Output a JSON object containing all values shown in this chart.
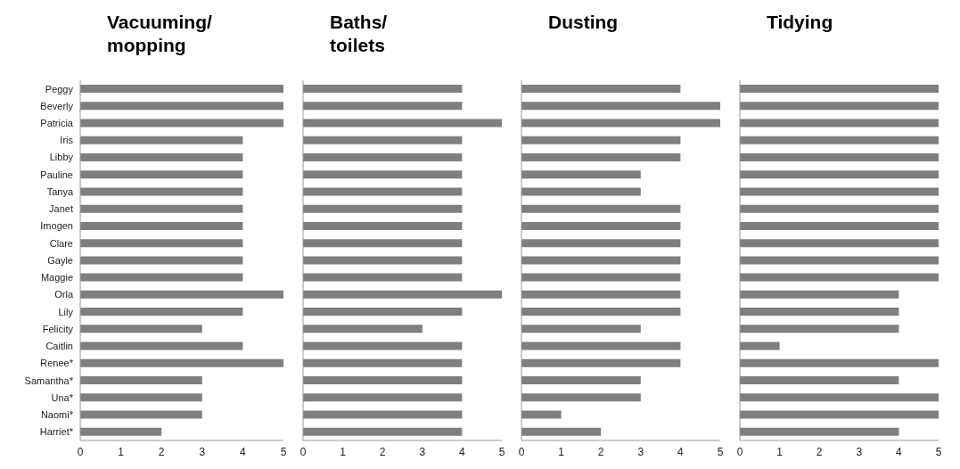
{
  "chart_data": [
    {
      "type": "bar",
      "orientation": "horizontal",
      "title": "Vacuuming/\nmopping",
      "categories": [
        "Peggy",
        "Beverly",
        "Patricia",
        "Iris",
        "Libby",
        "Pauline",
        "Tanya",
        "Janet",
        "Imogen",
        "Clare",
        "Gayle",
        "Maggie",
        "Orla",
        "Lily",
        "Felicity",
        "Caitlin",
        "Renee*",
        "Samantha*",
        "Una*",
        "Naomi*",
        "Harriet*"
      ],
      "values": [
        5,
        5,
        5,
        4,
        4,
        4,
        4,
        4,
        4,
        4,
        4,
        4,
        5,
        4,
        3,
        4,
        5,
        3,
        3,
        3,
        2
      ],
      "color": "#7f7f7f",
      "xlim": [
        0,
        5
      ],
      "xticks": [
        0,
        1,
        2,
        3,
        4,
        5
      ]
    },
    {
      "type": "bar",
      "orientation": "horizontal",
      "title": "Baths/\ntoilets",
      "categories": [
        null,
        null,
        null,
        null,
        null,
        null,
        null,
        null,
        null,
        null,
        null,
        null,
        null,
        null,
        null,
        null,
        null,
        null,
        null,
        null,
        null
      ],
      "values": [
        4,
        4,
        5,
        4,
        4,
        4,
        4,
        4,
        4,
        4,
        4,
        4,
        5,
        4,
        3,
        4,
        4,
        4,
        4,
        4,
        4
      ],
      "color": "#7f7f7f",
      "xlim": [
        0,
        5
      ],
      "xticks": [
        0,
        1,
        2,
        3,
        4,
        5
      ],
      "tick_labels": "x"
    },
    {
      "type": "bar",
      "orientation": "horizontal",
      "title": "Dusting",
      "categories": [
        null,
        null,
        null,
        null,
        null,
        null,
        null,
        null,
        null,
        null,
        null,
        null,
        null,
        null,
        null,
        null,
        null,
        null,
        null,
        null,
        null
      ],
      "values": [
        4,
        5,
        5,
        4,
        4,
        3,
        3,
        4,
        4,
        4,
        4,
        4,
        4,
        4,
        3,
        4,
        4,
        3,
        3,
        1,
        2
      ],
      "color": "#7f7f7f",
      "xlim": [
        0,
        5
      ],
      "xticks": [
        0,
        1,
        2,
        3,
        4,
        5
      ],
      "tick_labels": "x"
    },
    {
      "type": "bar",
      "orientation": "horizontal",
      "title": "Tidying",
      "categories": [
        null,
        null,
        null,
        null,
        null,
        null,
        null,
        null,
        null,
        null,
        null,
        null,
        null,
        null,
        null,
        null,
        null,
        null,
        null,
        null,
        null
      ],
      "values": [
        5,
        5,
        5,
        5,
        5,
        5,
        5,
        5,
        5,
        5,
        5,
        5,
        4,
        4,
        4,
        1,
        5,
        4,
        5,
        5,
        4
      ],
      "color": "#7f7f7f",
      "xlim": [
        0,
        5
      ],
      "xticks": [
        0,
        1,
        2,
        3,
        4,
        5
      ],
      "tick_labels": "x"
    }
  ]
}
